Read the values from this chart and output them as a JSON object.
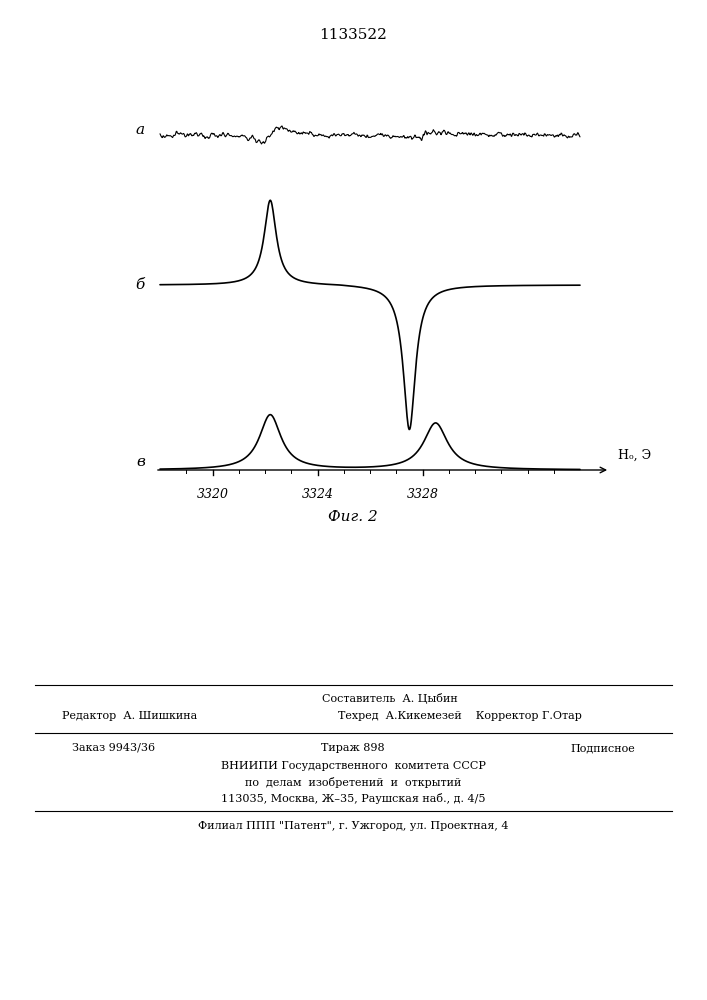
{
  "title_number": "1133522",
  "label_a": "a",
  "label_b": "б",
  "label_v": "в",
  "xlabel": "Hₒ, Э",
  "fig_caption": "Фиг. 2",
  "x_ticks": [
    "3320",
    "3324",
    "3328"
  ],
  "x_min": 3318,
  "x_max": 3334,
  "bg_color": "#ffffff",
  "footer_sestavitel": "Составитель  А. Цыбин",
  "footer_redaktor": "Редактор  А. Шишкина",
  "footer_tehred": "Техред  А.Кикемезей    Корректор Г.Отар",
  "footer_zakaz": "Заказ 9943/36",
  "footer_tirazh": "Тираж 898",
  "footer_podpisnoe": "Подписное",
  "footer_vniippi": "ВНИИПИ Государственного  комитета СССР",
  "footer_po_delam": "по  делам  изобретений  и  открытий",
  "footer_address": "113035, Москва, Ж–35, Раушская наб., д. 4/5",
  "footer_filial": "Филиал ППП \"Патент\", г. Ужгород, ул. Проектная, 4"
}
